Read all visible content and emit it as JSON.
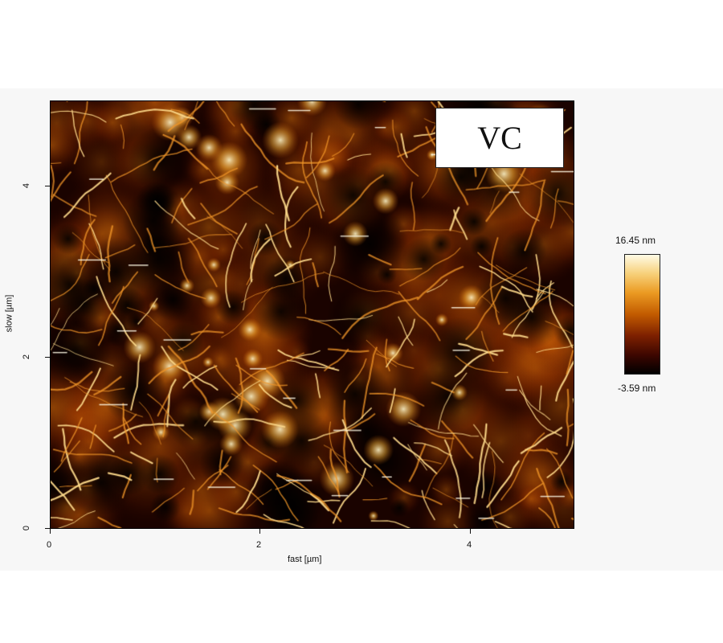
{
  "figure": {
    "label": "VC"
  },
  "chart_data": {
    "type": "heatmap",
    "xlabel": "fast [µm]",
    "ylabel": "slow [µm]",
    "xlim": [
      0,
      5
    ],
    "ylim": [
      0,
      5
    ],
    "x_ticks": [
      "0",
      "2",
      "4"
    ],
    "y_ticks": [
      "0",
      "2",
      "4"
    ],
    "colorbar": {
      "max_label": "16.45 nm",
      "min_label": "-3.59 nm",
      "range": [
        -3.59,
        16.45
      ]
    },
    "colormap": [
      "#000000",
      "#3a0600",
      "#7d2000",
      "#c25b00",
      "#eb9a22",
      "#f7d079",
      "#fffbe6"
    ]
  }
}
